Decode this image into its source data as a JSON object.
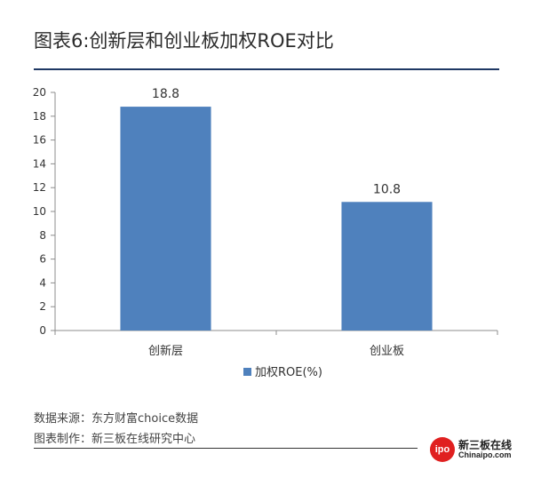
{
  "header": {
    "title": "图表6:创新层和创业板加权ROE对比"
  },
  "chart_data": {
    "type": "bar",
    "categories": [
      "创新层",
      "创业板"
    ],
    "values": [
      18.8,
      10.8
    ],
    "series": [
      {
        "name": "加权ROE(%)",
        "values": [
          18.8,
          10.8
        ]
      }
    ],
    "data_labels": [
      "18.8",
      "10.8"
    ],
    "yticks": [
      "0",
      "2",
      "4",
      "6",
      "8",
      "10",
      "12",
      "14",
      "16",
      "18",
      "20"
    ],
    "ylim": [
      0,
      20
    ],
    "grid": false,
    "legend_position": "bottom-center",
    "bar_color": "#4f81bd"
  },
  "footer": {
    "source": "数据来源：东方财富choice数据",
    "maker": "图表制作：新三板在线研究中心"
  },
  "logo": {
    "badge": "ipo",
    "name": "新三板在线",
    "url": "Chinaipo.com",
    "color": "#e02020"
  }
}
